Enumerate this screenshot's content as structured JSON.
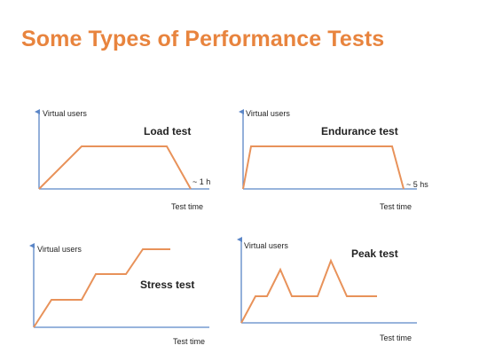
{
  "title": "Some Types of Performance Tests",
  "colors": {
    "title": "#E8843E",
    "line": "#E8925A",
    "axis": "#5B86C7",
    "text": "#222222"
  },
  "panels": [
    {
      "name": "Load test",
      "y_axis_label": "Virtual users",
      "x_axis_label": "Test time",
      "annotation": "~ 1 h"
    },
    {
      "name": "Endurance test",
      "y_axis_label": "Virtual users",
      "x_axis_label": "Test time",
      "annotation": "~ 5 hs"
    },
    {
      "name": "Stress test",
      "y_axis_label": "Virtual users",
      "x_axis_label": "Test time",
      "annotation": ""
    },
    {
      "name": "Peak test",
      "y_axis_label": "Virtual users",
      "x_axis_label": "Test time",
      "annotation": ""
    }
  ]
}
